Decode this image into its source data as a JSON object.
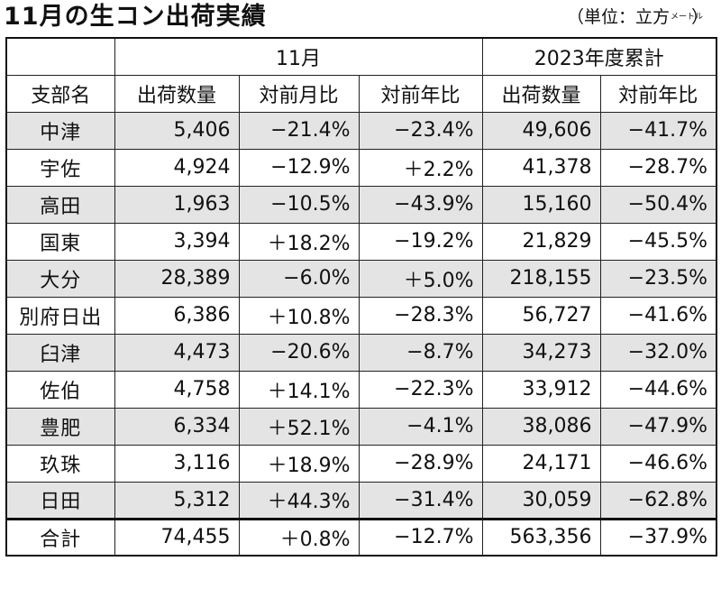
{
  "title": "11月の生コン出荷実績",
  "unit": {
    "open": "（単位：立方",
    "small": "メートル",
    "close": "）"
  },
  "group_headers": {
    "blank": "",
    "month": "11月",
    "year": "2023年度累計"
  },
  "columns": [
    "支部名",
    "出荷数量",
    "対前月比",
    "対前年比",
    "出荷数量",
    "対前年比"
  ],
  "rows": [
    [
      "中津",
      "5,406",
      "−21.4%",
      "−23.4%",
      "49,606",
      "−41.7%"
    ],
    [
      "宇佐",
      "4,924",
      "−12.9%",
      "＋2.2%",
      "41,378",
      "−28.7%"
    ],
    [
      "高田",
      "1,963",
      "−10.5%",
      "−43.9%",
      "15,160",
      "−50.4%"
    ],
    [
      "国東",
      "3,394",
      "＋18.2%",
      "−19.2%",
      "21,829",
      "−45.5%"
    ],
    [
      "大分",
      "28,389",
      "−6.0%",
      "＋5.0%",
      "218,155",
      "−23.5%"
    ],
    [
      "別府日出",
      "6,386",
      "＋10.8%",
      "−28.3%",
      "56,727",
      "−41.6%"
    ],
    [
      "臼津",
      "4,473",
      "−20.6%",
      "−8.7%",
      "34,273",
      "−32.0%"
    ],
    [
      "佐伯",
      "4,758",
      "＋14.1%",
      "−22.3%",
      "33,912",
      "−44.6%"
    ],
    [
      "豊肥",
      "6,334",
      "＋52.1%",
      "−4.1%",
      "38,086",
      "−47.9%"
    ],
    [
      "玖珠",
      "3,116",
      "＋18.9%",
      "−28.9%",
      "24,171",
      "−46.6%"
    ],
    [
      "日田",
      "5,312",
      "＋44.3%",
      "−31.4%",
      "30,059",
      "−62.8%"
    ]
  ],
  "total": [
    "合計",
    "74,455",
    "＋0.8%",
    "−12.7%",
    "563,356",
    "−37.9%"
  ]
}
